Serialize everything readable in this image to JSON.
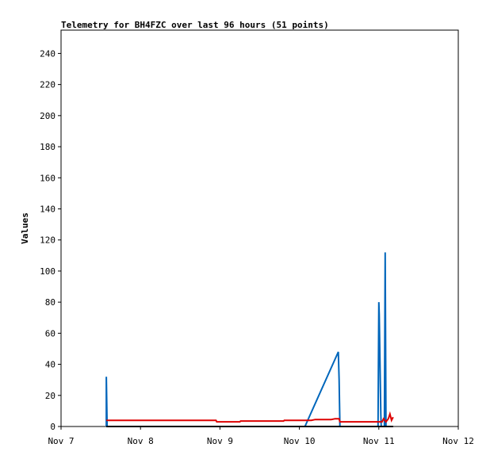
{
  "chart_data": {
    "type": "line",
    "title": "Telemetry for BH4FZC over last 96 hours (51 points)",
    "xlabel": "",
    "ylabel": "Values",
    "x_ticks": [
      "Nov 7",
      "Nov 8",
      "Nov 9",
      "Nov 10",
      "Nov 11",
      "Nov 12"
    ],
    "x_range_days": [
      7,
      12
    ],
    "y_ticks": [
      0,
      20,
      40,
      60,
      80,
      100,
      120,
      140,
      160,
      180,
      200,
      220,
      240
    ],
    "ylim": [
      0,
      255
    ],
    "grid": false,
    "legend": "none",
    "series": [
      {
        "color": "#0066bb",
        "points": [
          [
            7.57,
            0
          ],
          [
            7.57,
            32
          ],
          [
            7.575,
            16
          ],
          [
            7.58,
            0
          ],
          [
            10.07,
            0
          ],
          [
            10.49,
            48
          ],
          [
            10.5,
            30
          ],
          [
            10.51,
            0
          ],
          [
            10.99,
            0
          ],
          [
            11.0,
            80
          ],
          [
            11.005,
            72
          ],
          [
            11.01,
            56
          ],
          [
            11.015,
            40
          ],
          [
            11.02,
            24
          ],
          [
            11.025,
            8
          ],
          [
            11.03,
            0
          ],
          [
            11.07,
            0
          ],
          [
            11.08,
            112
          ],
          [
            11.085,
            56
          ],
          [
            11.09,
            0
          ]
        ]
      },
      {
        "color": "#dd0000",
        "points": [
          [
            7.57,
            4
          ],
          [
            8.95,
            4
          ],
          [
            8.96,
            3
          ],
          [
            9.25,
            3
          ],
          [
            9.26,
            3.5
          ],
          [
            9.8,
            3.5
          ],
          [
            9.81,
            4
          ],
          [
            10.15,
            4
          ],
          [
            10.2,
            4.5
          ],
          [
            10.4,
            4.5
          ],
          [
            10.45,
            5
          ],
          [
            10.5,
            5
          ],
          [
            10.51,
            3
          ],
          [
            11.0,
            3
          ],
          [
            11.04,
            3
          ],
          [
            11.06,
            5
          ],
          [
            11.09,
            3
          ],
          [
            11.12,
            5
          ],
          [
            11.14,
            8
          ],
          [
            11.16,
            4
          ],
          [
            11.18,
            6
          ]
        ]
      },
      {
        "color": "#000000",
        "points": [
          [
            7.57,
            0
          ],
          [
            11.18,
            0
          ]
        ]
      }
    ]
  }
}
